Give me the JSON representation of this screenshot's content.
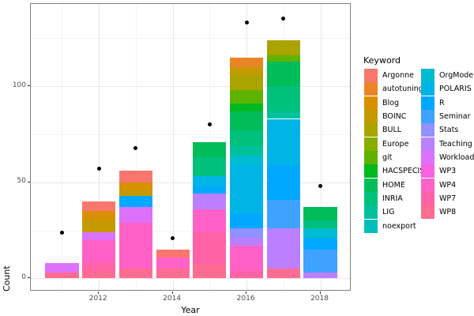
{
  "figure": {
    "background": "#FFFFFF",
    "panel_border_color": "#7F7F7F",
    "grid_major_color": "#E8E8E8",
    "grid_minor_color": "#F4F4F4",
    "tick_label_color": "#4D4D4D",
    "point_color": "#000000"
  },
  "axes": {
    "x_label": "Year",
    "y_label": "Count",
    "x_tick_labels": [
      "2012",
      "2014",
      "2016",
      "2018"
    ],
    "x_tick_years": [
      2012,
      2014,
      2016,
      2018
    ],
    "y_tick_labels": [
      "0",
      "50",
      "100"
    ],
    "y_tick_values": [
      0,
      50,
      100
    ]
  },
  "legend": {
    "title": "Keyword",
    "position": "right",
    "items_column_1": [
      "Argonne",
      "autotuning",
      "Blog",
      "BOINC",
      "BULL",
      "Europe",
      "git",
      "HACSPECIS",
      "HOME",
      "INRIA",
      "LIG",
      "noexport"
    ],
    "items_column_2": [
      "OrgMode",
      "POLARIS",
      "R",
      "Seminar",
      "Stats",
      "Teaching",
      "Workload",
      "WP3",
      "WP4",
      "WP7",
      "WP8"
    ]
  },
  "palette": {
    "Argonne": "#F8766D",
    "autotuning": "#E98527",
    "Blog": "#D89000",
    "BOINC": "#C49A00",
    "BULL": "#ABA300",
    "Europe": "#89AC00",
    "git": "#5EB300",
    "HACSPECIS": "#00B81F",
    "HOME": "#00BC59",
    "INRIA": "#00C07D",
    "LIG": "#00C19C",
    "noexport": "#00BFB8",
    "OrgMode": "#00BCD1",
    "POLARIS": "#00B5E6",
    "R": "#00A9FF",
    "Seminar": "#3FA2FF",
    "Stats": "#8F92FF",
    "Teaching": "#BB80FF",
    "Workload": "#DC71FA",
    "WP3": "#F763E0",
    "WP4": "#FF61C7",
    "WP7": "#FF63A6",
    "WP8": "#FF6C91"
  },
  "chart_data": {
    "type": "bar",
    "stacked": true,
    "title": "",
    "xlabel": "Year",
    "ylabel": "Count",
    "legend_title": "Keyword",
    "legend_position": "right",
    "grid": true,
    "x_years": [
      2011,
      2012,
      2013,
      2014,
      2015,
      2016,
      2017,
      2018
    ],
    "xlim": [
      2010.155,
      2018.845
    ],
    "ylim": [
      -6.8,
      142.8
    ],
    "bar_width_years": 0.9,
    "x_major_gridlines": [
      2012,
      2014,
      2016,
      2018
    ],
    "x_minor_gridlines": [
      2011,
      2013,
      2015,
      2017
    ],
    "y_major_gridlines": [
      0,
      50,
      100
    ],
    "y_minor_gridlines": [
      25,
      75,
      125
    ],
    "stack_order_note": "segments listed bottom-to-top; top of each stack follows alphabetical keyword order (Argonne on top, WP8 at bottom)",
    "bars": [
      {
        "year": 2011,
        "total": 8,
        "segments": [
          [
            "WP8",
            3
          ],
          [
            "Workload",
            5
          ]
        ]
      },
      {
        "year": 2012,
        "total": 40,
        "segments": [
          [
            "WP8",
            4
          ],
          [
            "WP7",
            4
          ],
          [
            "WP4",
            12
          ],
          [
            "Workload",
            4
          ],
          [
            "BOINC",
            6
          ],
          [
            "Blog",
            5
          ],
          [
            "Argonne",
            5
          ]
        ]
      },
      {
        "year": 2013,
        "total": 56,
        "segments": [
          [
            "WP8",
            5
          ],
          [
            "WP4",
            24
          ],
          [
            "Workload",
            8
          ],
          [
            "R",
            6
          ],
          [
            "BOINC",
            3
          ],
          [
            "Blog",
            4
          ],
          [
            "Argonne",
            6
          ]
        ]
      },
      {
        "year": 2014,
        "total": 15,
        "segments": [
          [
            "WP8",
            5
          ],
          [
            "WP4",
            6
          ],
          [
            "Argonne",
            4
          ]
        ]
      },
      {
        "year": 2015,
        "total": 71,
        "segments": [
          [
            "WP8",
            7
          ],
          [
            "WP7",
            17
          ],
          [
            "WP4",
            12
          ],
          [
            "Teaching",
            8
          ],
          [
            "R",
            4
          ],
          [
            "POLARIS",
            5
          ],
          [
            "INRIA",
            10
          ],
          [
            "HOME",
            8
          ]
        ]
      },
      {
        "year": 2016,
        "total": 115,
        "segments": [
          [
            "WP7",
            4
          ],
          [
            "WP4",
            13
          ],
          [
            "Teaching",
            4
          ],
          [
            "Stats",
            5
          ],
          [
            "R",
            8
          ],
          [
            "POLARIS",
            25
          ],
          [
            "OrgMode",
            5
          ],
          [
            "LIG",
            5
          ],
          [
            "INRIA",
            8
          ],
          [
            "HOME",
            10
          ],
          [
            "HACSPECIS",
            4
          ],
          [
            "git",
            7
          ],
          [
            "BULL",
            8
          ],
          [
            "BOINC",
            4
          ],
          [
            "autotuning",
            5
          ]
        ]
      },
      {
        "year": 2017,
        "total": 124,
        "segments": [
          [
            "WP8",
            5
          ],
          [
            "Teaching",
            21
          ],
          [
            "Seminar",
            15
          ],
          [
            "R",
            18
          ],
          [
            "POLARIS",
            24
          ],
          [
            "LIG",
            4
          ],
          [
            "INRIA",
            13
          ],
          [
            "HOME",
            13
          ],
          [
            "git",
            3
          ],
          [
            "BULL",
            8
          ]
        ]
      },
      {
        "year": 2018,
        "total": 37,
        "segments": [
          [
            "Teaching",
            3
          ],
          [
            "Seminar",
            12
          ],
          [
            "R",
            6
          ],
          [
            "OrgMode",
            5
          ],
          [
            "INRIA",
            4
          ],
          [
            "HOME",
            7
          ]
        ]
      }
    ],
    "points": [
      {
        "year": 2011,
        "value": 24
      },
      {
        "year": 2012,
        "value": 57
      },
      {
        "year": 2013,
        "value": 68
      },
      {
        "year": 2014,
        "value": 21
      },
      {
        "year": 2015,
        "value": 80
      },
      {
        "year": 2016,
        "value": 133
      },
      {
        "year": 2017,
        "value": 135
      },
      {
        "year": 2018,
        "value": 48
      }
    ]
  }
}
